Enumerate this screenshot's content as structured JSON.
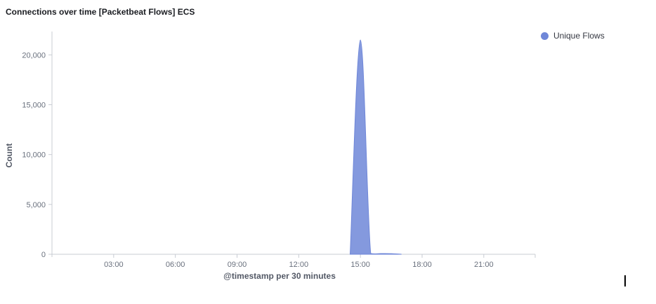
{
  "panel": {
    "title": "Connections over time [Packetbeat Flows] ECS"
  },
  "legend": {
    "items": [
      {
        "label": "Unique Flows",
        "color": "#6f87d8"
      }
    ]
  },
  "chart_data": {
    "type": "area",
    "title": "Connections over time [Packetbeat Flows] ECS",
    "xlabel": "@timestamp per 30 minutes",
    "ylabel": "Count",
    "x_ticks": [
      "03:00",
      "06:00",
      "09:00",
      "12:00",
      "15:00",
      "18:00",
      "21:00"
    ],
    "y_ticks": [
      "0",
      "5,000",
      "10,000",
      "15,000",
      "20,000"
    ],
    "xlim": [
      "00:00",
      "23:30"
    ],
    "ylim": [
      0,
      21500
    ],
    "grid": false,
    "legend_position": "top-right",
    "series": [
      {
        "name": "Unique Flows",
        "color": "#6f87d8",
        "points": [
          {
            "x": "14:30",
            "y": 0
          },
          {
            "x": "15:00",
            "y": 21500
          },
          {
            "x": "15:30",
            "y": 80
          },
          {
            "x": "16:00",
            "y": 70
          },
          {
            "x": "16:30",
            "y": 60
          },
          {
            "x": "17:00",
            "y": 0
          }
        ]
      }
    ]
  }
}
